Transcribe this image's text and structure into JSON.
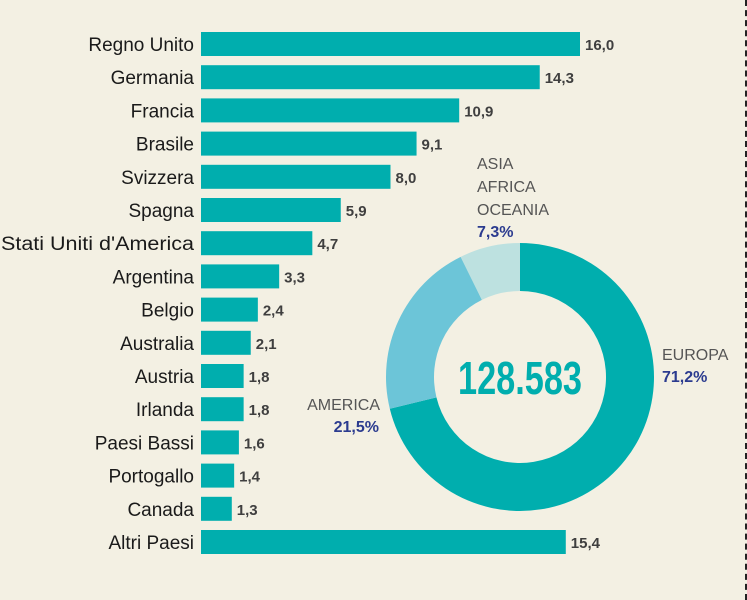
{
  "chart_data": [
    {
      "type": "bar",
      "orientation": "horizontal",
      "categories": [
        "Regno Unito",
        "Germania",
        "Francia",
        "Brasile",
        "Svizzera",
        "Spagna",
        "Stati Uniti d'America",
        "Argentina",
        "Belgio",
        "Australia",
        "Austria",
        "Irlanda",
        "Paesi Bassi",
        "Portogallo",
        "Canada",
        "Altri Paesi"
      ],
      "values": [
        16.0,
        14.3,
        10.9,
        9.1,
        8.0,
        5.9,
        4.7,
        3.3,
        2.4,
        2.1,
        1.8,
        1.8,
        1.6,
        1.4,
        1.3,
        15.4
      ],
      "value_labels": [
        "16,0",
        "14,3",
        "10,9",
        "9,1",
        "8,0",
        "5,9",
        "4,7",
        "3,3",
        "2,4",
        "2,1",
        "1,8",
        "1,8",
        "1,6",
        "1,4",
        "1,3",
        "15,4"
      ],
      "color": "#00aeae",
      "grid": false
    },
    {
      "type": "pie",
      "donut": true,
      "center_label": "128.583",
      "slices": [
        {
          "name": "EUROPA",
          "value": 71.2,
          "label": "71,2%",
          "color": "#00aeae"
        },
        {
          "name": "AMERICA",
          "value": 21.5,
          "label": "21,5%",
          "color": "#6cc5d8"
        },
        {
          "name": "ASIA AFRICA OCEANIA",
          "name_lines": [
            "ASIA",
            "AFRICA",
            "OCEANIA"
          ],
          "value": 7.3,
          "label": "7,3%",
          "color": "#bde1e0"
        }
      ]
    }
  ]
}
